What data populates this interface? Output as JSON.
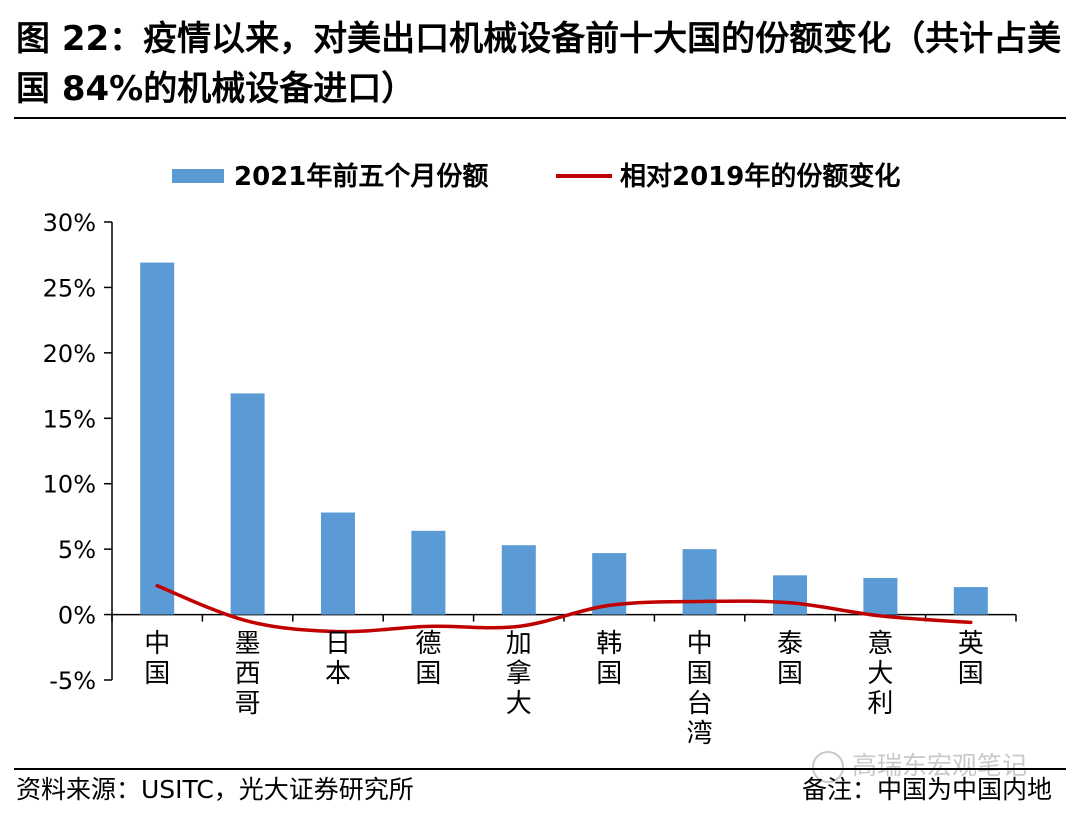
{
  "header": {
    "title": "图 22：疫情以来，对美出口机械设备前十大国的份额变化（共计占美国 84%的机械设备进口）"
  },
  "footer": {
    "source": "资料来源：USITC，光大证券研究所",
    "note": "备注：中国为中国内地",
    "watermark": "高瑞东宏观笔记"
  },
  "chart_data": {
    "type": "bar",
    "title": "",
    "xlabel": "",
    "ylabel": "",
    "ylim": [
      -5,
      30
    ],
    "yticks": [
      "30%",
      "25%",
      "20%",
      "15%",
      "10%",
      "5%",
      "0%",
      "-5%"
    ],
    "ytick_values": [
      30,
      25,
      20,
      15,
      10,
      5,
      0,
      -5
    ],
    "categories": [
      "中国",
      "墨西哥",
      "日本",
      "德国",
      "加拿大",
      "韩国",
      "中国台湾",
      "泰国",
      "意大利",
      "英国"
    ],
    "series": [
      {
        "name": "2021年前五个月份额",
        "kind": "bar",
        "color": "#5b9bd5",
        "values": [
          26.9,
          16.9,
          7.8,
          6.4,
          5.3,
          4.7,
          5.0,
          3.0,
          2.8,
          2.1
        ]
      },
      {
        "name": "相对2019年的份额变化",
        "kind": "line",
        "color": "#c00000",
        "values": [
          2.2,
          -0.5,
          -1.3,
          -0.9,
          -0.9,
          0.7,
          1.0,
          0.9,
          -0.1,
          -0.6
        ]
      }
    ],
    "legend_position": "top-center"
  }
}
